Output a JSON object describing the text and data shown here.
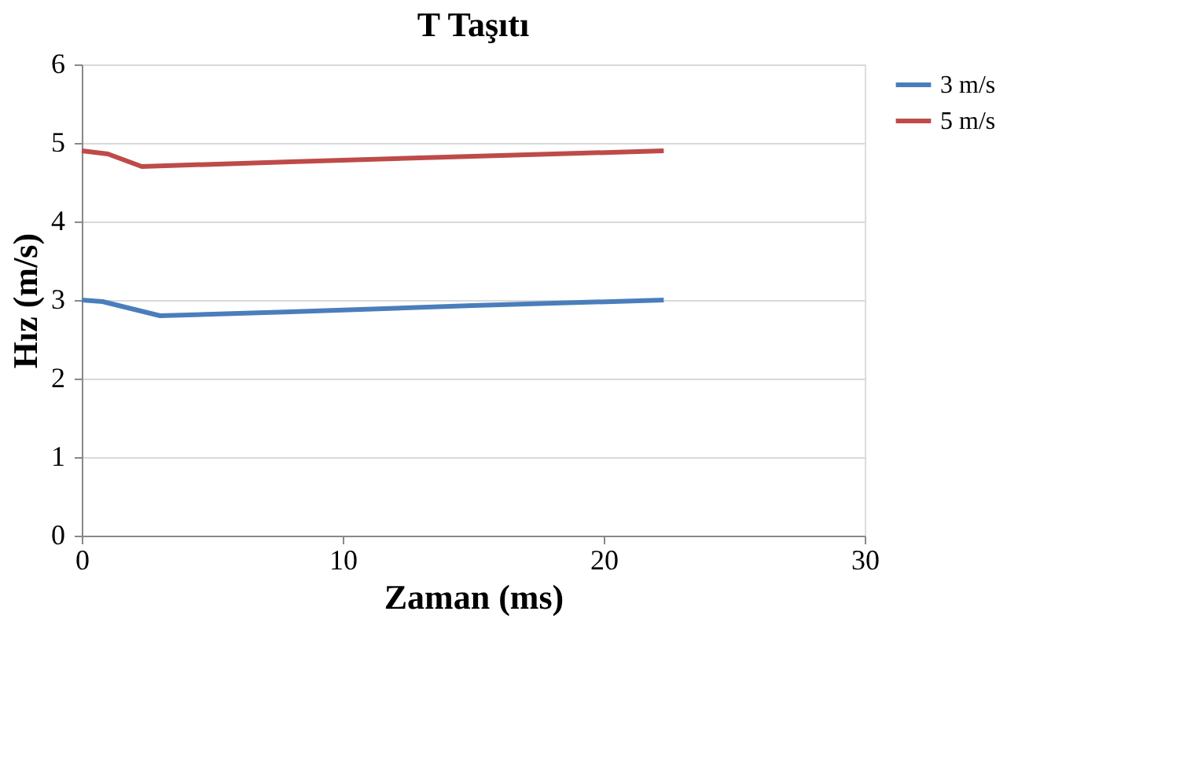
{
  "chart_data": {
    "type": "line",
    "title": "T Taşıtı",
    "xlabel": "Zaman (ms)",
    "ylabel": "Hız (m/s)",
    "xlim": [
      0,
      30
    ],
    "xticks": [
      0,
      10,
      20,
      30
    ],
    "ylim": [
      0,
      6
    ],
    "yticks": [
      0,
      1,
      2,
      3,
      4,
      5,
      6
    ],
    "grid": "y",
    "legend": "right",
    "marker": "none",
    "line_style": "solid",
    "series": [
      {
        "name": "3 m/s",
        "color": "#4a7ebb",
        "x": [
          0,
          0.8,
          3,
          8,
          15,
          22.3
        ],
        "values": [
          3.0,
          2.98,
          2.8,
          2.85,
          2.93,
          3.0
        ]
      },
      {
        "name": "5 m/s",
        "color": "#be4b48",
        "x": [
          0,
          1,
          2.3,
          8,
          15,
          22.3
        ],
        "values": [
          4.9,
          4.86,
          4.7,
          4.76,
          4.83,
          4.9
        ]
      }
    ]
  }
}
